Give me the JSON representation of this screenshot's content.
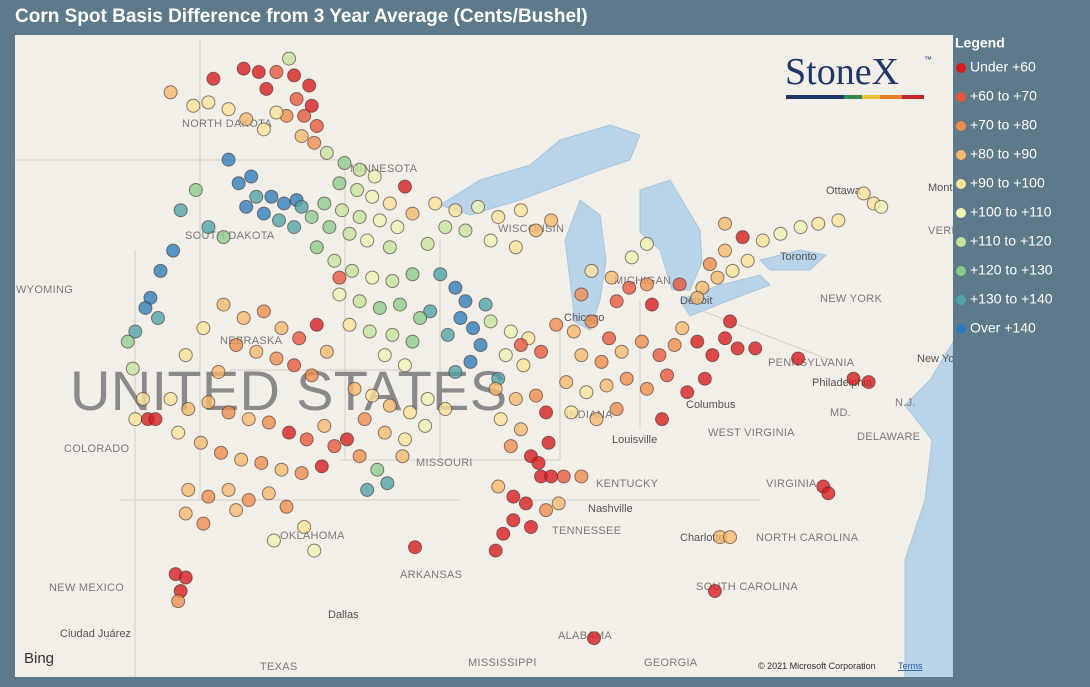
{
  "title": "Corn Spot Basis Difference from 3 Year Average (Cents/Bushel)",
  "legend": {
    "title": "Legend",
    "items": [
      {
        "label": "Under +60",
        "color": "#d7191c"
      },
      {
        "label": "+60 to +70",
        "color": "#e8553a"
      },
      {
        "label": "+70 to +80",
        "color": "#f08c4c"
      },
      {
        "label": "+80 to +90",
        "color": "#f6b96c"
      },
      {
        "label": "+90 to +100",
        "color": "#fbe39a"
      },
      {
        "label": "+100 to +110",
        "color": "#eef4b4"
      },
      {
        "label": "+110 to +120",
        "color": "#c5e39b"
      },
      {
        "label": "+120 to +130",
        "color": "#8bcc8a"
      },
      {
        "label": "+130 to +140",
        "color": "#4ea3a6"
      },
      {
        "label": "Over +140",
        "color": "#2b7bbb"
      }
    ]
  },
  "logo": {
    "name": "StoneX",
    "mark": "™"
  },
  "map": {
    "labels": [
      "NORTH DAKOTA",
      "MINNESOTA",
      "SOUTH DAKOTA",
      "WYOMING",
      "NEBRASKA",
      "UNITED STATES",
      "COLORADO",
      "MISSOURI",
      "OKLAHOMA",
      "ARKANSAS",
      "NEW MEXICO",
      "TEXAS",
      "MISSISSIPPI",
      "ALABAMA",
      "GEORGIA",
      "TENNESSEE",
      "KENTUCKY",
      "WEST VIRGINIA",
      "VIRGINIA",
      "NORTH CAROLINA",
      "SOUTH CAROLINA",
      "PENNSYLVANIA",
      "NEW YORK",
      "DELAWARE",
      "MD.",
      "N.J.",
      "MICHIGAN",
      "WISCONSIN",
      "INDIANA",
      "Ottawa",
      "Toronto",
      "Montréal",
      "Chicago",
      "Detroit",
      "Columbus",
      "Louisville",
      "Nashville",
      "Charlotte",
      "Philadelphia",
      "New York",
      "Dallas",
      "Ciudad Juárez",
      "VERMONT"
    ],
    "points": [
      [
        -99.6,
        49.0,
        0
      ],
      [
        -99.0,
        48.9,
        0
      ],
      [
        -98.3,
        48.9,
        1
      ],
      [
        -97.6,
        48.8,
        0
      ],
      [
        -97.0,
        48.5,
        0
      ],
      [
        -98.7,
        48.4,
        0
      ],
      [
        -97.5,
        48.1,
        1
      ],
      [
        -96.9,
        47.9,
        0
      ],
      [
        -97.9,
        47.6,
        2
      ],
      [
        -96.7,
        47.3,
        1
      ],
      [
        -100.8,
        48.7,
        0
      ],
      [
        -97.2,
        47.6,
        1
      ],
      [
        -101.0,
        48.0,
        4
      ],
      [
        -100.2,
        47.8,
        4
      ],
      [
        -99.5,
        47.5,
        3
      ],
      [
        -98.8,
        47.2,
        4
      ],
      [
        -98.3,
        47.7,
        4
      ],
      [
        -97.3,
        47.0,
        3
      ],
      [
        -96.8,
        46.8,
        2
      ],
      [
        -102.5,
        48.3,
        3
      ],
      [
        -101.6,
        47.9,
        4
      ],
      [
        -97.8,
        49.3,
        6
      ],
      [
        -100.2,
        46.3,
        9
      ],
      [
        -99.8,
        45.6,
        9
      ],
      [
        -99.3,
        45.8,
        9
      ],
      [
        -99.1,
        45.2,
        8
      ],
      [
        -98.5,
        45.2,
        9
      ],
      [
        -98.0,
        45.0,
        9
      ],
      [
        -97.5,
        45.1,
        9
      ],
      [
        -98.8,
        44.7,
        9
      ],
      [
        -98.2,
        44.5,
        8
      ],
      [
        -97.6,
        44.3,
        8
      ],
      [
        -99.5,
        44.9,
        9
      ],
      [
        -101.5,
        45.4,
        7
      ],
      [
        -102.1,
        44.8,
        8
      ],
      [
        -101.0,
        44.3,
        8
      ],
      [
        -100.4,
        44.0,
        7
      ],
      [
        -97.3,
        44.9,
        8
      ],
      [
        -96.9,
        44.6,
        7
      ],
      [
        -102.4,
        43.6,
        9
      ],
      [
        -102.9,
        43.0,
        9
      ],
      [
        -103.3,
        42.2,
        9
      ],
      [
        -103.5,
        41.9,
        9
      ],
      [
        -103.9,
        41.2,
        8
      ],
      [
        -104.2,
        40.9,
        7
      ],
      [
        -104.0,
        40.1,
        6
      ],
      [
        -103.0,
        41.6,
        8
      ],
      [
        -96.3,
        46.5,
        6
      ],
      [
        -95.6,
        46.2,
        7
      ],
      [
        -95.0,
        46.0,
        6
      ],
      [
        -94.4,
        45.8,
        5
      ],
      [
        -95.8,
        45.6,
        7
      ],
      [
        -95.1,
        45.4,
        6
      ],
      [
        -94.5,
        45.2,
        5
      ],
      [
        -93.8,
        45.0,
        4
      ],
      [
        -96.4,
        45.0,
        7
      ],
      [
        -95.7,
        44.8,
        6
      ],
      [
        -95.0,
        44.6,
        6
      ],
      [
        -94.2,
        44.5,
        5
      ],
      [
        -93.5,
        44.3,
        5
      ],
      [
        -96.2,
        44.3,
        7
      ],
      [
        -95.4,
        44.1,
        6
      ],
      [
        -94.7,
        43.9,
        5
      ],
      [
        -93.8,
        43.7,
        6
      ],
      [
        -92.9,
        44.7,
        3
      ],
      [
        -96.7,
        43.7,
        7
      ],
      [
        -93.2,
        45.5,
        0
      ],
      [
        -92.0,
        45.0,
        4
      ],
      [
        -91.2,
        44.8,
        4
      ],
      [
        -90.3,
        44.9,
        5
      ],
      [
        -89.5,
        44.6,
        4
      ],
      [
        -88.6,
        44.8,
        4
      ],
      [
        -88.0,
        44.2,
        3
      ],
      [
        -90.8,
        44.2,
        6
      ],
      [
        -89.8,
        43.9,
        5
      ],
      [
        -88.8,
        43.7,
        4
      ],
      [
        -87.4,
        44.5,
        3
      ],
      [
        -91.6,
        44.3,
        6
      ],
      [
        -92.3,
        43.8,
        6
      ],
      [
        -91.8,
        42.9,
        8
      ],
      [
        -91.2,
        42.5,
        9
      ],
      [
        -90.8,
        42.1,
        9
      ],
      [
        -91.0,
        41.6,
        9
      ],
      [
        -90.5,
        41.3,
        9
      ],
      [
        -90.2,
        40.8,
        9
      ],
      [
        -91.5,
        41.1,
        8
      ],
      [
        -90.6,
        40.3,
        9
      ],
      [
        -91.2,
        40.0,
        8
      ],
      [
        -90.0,
        42.0,
        8
      ],
      [
        -92.2,
        41.8,
        8
      ],
      [
        -89.5,
        39.8,
        8
      ],
      [
        -96.0,
        43.3,
        6
      ],
      [
        -95.3,
        43.0,
        6
      ],
      [
        -94.5,
        42.8,
        5
      ],
      [
        -93.7,
        42.7,
        6
      ],
      [
        -92.9,
        42.9,
        7
      ],
      [
        -95.8,
        42.3,
        5
      ],
      [
        -95.0,
        42.1,
        6
      ],
      [
        -94.2,
        41.9,
        7
      ],
      [
        -93.4,
        42.0,
        7
      ],
      [
        -92.6,
        41.6,
        7
      ],
      [
        -95.4,
        41.4,
        4
      ],
      [
        -94.6,
        41.2,
        6
      ],
      [
        -93.7,
        41.1,
        6
      ],
      [
        -92.9,
        40.9,
        7
      ],
      [
        -94.0,
        40.5,
        5
      ],
      [
        -93.2,
        40.2,
        5
      ],
      [
        -100.4,
        42.0,
        3
      ],
      [
        -99.6,
        41.6,
        3
      ],
      [
        -98.8,
        41.8,
        2
      ],
      [
        -98.1,
        41.3,
        3
      ],
      [
        -97.4,
        41.0,
        1
      ],
      [
        -96.7,
        41.4,
        0
      ],
      [
        -99.9,
        40.8,
        2
      ],
      [
        -99.1,
        40.6,
        3
      ],
      [
        -98.3,
        40.4,
        2
      ],
      [
        -97.6,
        40.2,
        1
      ],
      [
        -96.9,
        39.9,
        2
      ],
      [
        -100.6,
        40.0,
        3
      ],
      [
        -101.2,
        41.3,
        4
      ],
      [
        -101.9,
        40.5,
        4
      ],
      [
        -96.3,
        40.6,
        3
      ],
      [
        -95.8,
        42.8,
        1
      ],
      [
        -102.5,
        39.2,
        4
      ],
      [
        -101.8,
        38.9,
        3
      ],
      [
        -101.0,
        39.1,
        3
      ],
      [
        -100.2,
        38.8,
        2
      ],
      [
        -99.4,
        38.6,
        3
      ],
      [
        -98.6,
        38.5,
        2
      ],
      [
        -97.8,
        38.2,
        0
      ],
      [
        -97.1,
        38.0,
        1
      ],
      [
        -96.4,
        38.4,
        3
      ],
      [
        -102.2,
        38.2,
        4
      ],
      [
        -101.3,
        37.9,
        3
      ],
      [
        -100.5,
        37.6,
        2
      ],
      [
        -99.7,
        37.4,
        3
      ],
      [
        -98.9,
        37.3,
        2
      ],
      [
        -98.1,
        37.1,
        3
      ],
      [
        -97.3,
        37.0,
        2
      ],
      [
        -96.5,
        37.2,
        0
      ],
      [
        -96.0,
        37.8,
        1
      ],
      [
        -103.9,
        38.6,
        4
      ],
      [
        -103.6,
        39.2,
        4
      ],
      [
        -103.4,
        38.6,
        0
      ],
      [
        -103.1,
        38.6,
        0
      ],
      [
        -101.8,
        36.5,
        3
      ],
      [
        -101.0,
        36.3,
        2
      ],
      [
        -100.2,
        36.5,
        3
      ],
      [
        -99.4,
        36.2,
        2
      ],
      [
        -98.6,
        36.4,
        3
      ],
      [
        -97.9,
        36.0,
        2
      ],
      [
        -101.9,
        35.8,
        3
      ],
      [
        -101.2,
        35.5,
        2
      ],
      [
        -99.9,
        35.9,
        3
      ],
      [
        -97.2,
        35.4,
        4
      ],
      [
        -96.8,
        34.7,
        5
      ],
      [
        -95.2,
        39.5,
        3
      ],
      [
        -94.5,
        39.3,
        4
      ],
      [
        -93.8,
        39.0,
        3
      ],
      [
        -93.0,
        38.8,
        4
      ],
      [
        -92.3,
        39.2,
        5
      ],
      [
        -91.6,
        38.9,
        4
      ],
      [
        -94.8,
        38.6,
        2
      ],
      [
        -94.0,
        38.2,
        3
      ],
      [
        -93.2,
        38.0,
        4
      ],
      [
        -92.4,
        38.4,
        5
      ],
      [
        -95.5,
        38.0,
        0
      ],
      [
        -95.0,
        37.5,
        2
      ],
      [
        -94.3,
        37.1,
        7
      ],
      [
        -94.7,
        36.5,
        8
      ],
      [
        -93.3,
        37.5,
        3
      ],
      [
        -89.8,
        41.5,
        6
      ],
      [
        -89.0,
        41.2,
        5
      ],
      [
        -88.3,
        41.0,
        4
      ],
      [
        -89.2,
        40.5,
        5
      ],
      [
        -88.5,
        40.2,
        4
      ],
      [
        -87.8,
        40.6,
        1
      ],
      [
        -89.6,
        39.5,
        3
      ],
      [
        -88.8,
        39.2,
        3
      ],
      [
        -88.0,
        39.3,
        2
      ],
      [
        -87.6,
        38.8,
        0
      ],
      [
        -89.4,
        38.6,
        4
      ],
      [
        -88.6,
        38.3,
        3
      ],
      [
        -89.0,
        37.8,
        2
      ],
      [
        -88.2,
        37.5,
        0
      ],
      [
        -87.5,
        37.9,
        0
      ],
      [
        -88.6,
        40.8,
        1
      ],
      [
        -87.2,
        41.4,
        2
      ],
      [
        -86.5,
        41.2,
        3
      ],
      [
        -85.8,
        41.5,
        2
      ],
      [
        -85.1,
        41.0,
        1
      ],
      [
        -86.2,
        40.5,
        3
      ],
      [
        -85.4,
        40.3,
        2
      ],
      [
        -84.6,
        40.6,
        3
      ],
      [
        -83.8,
        40.9,
        2
      ],
      [
        -83.1,
        40.5,
        1
      ],
      [
        -82.5,
        40.8,
        2
      ],
      [
        -86.8,
        39.7,
        3
      ],
      [
        -86.0,
        39.4,
        4
      ],
      [
        -85.2,
        39.6,
        3
      ],
      [
        -84.4,
        39.8,
        2
      ],
      [
        -83.6,
        39.5,
        2
      ],
      [
        -82.8,
        39.9,
        1
      ],
      [
        -86.6,
        38.8,
        4
      ],
      [
        -85.6,
        38.6,
        3
      ],
      [
        -84.8,
        38.9,
        2
      ],
      [
        -82.2,
        41.3,
        3
      ],
      [
        -81.6,
        40.9,
        0
      ],
      [
        -81.0,
        40.5,
        0
      ],
      [
        -80.5,
        41.0,
        0
      ],
      [
        -80.0,
        40.7,
        0
      ],
      [
        -81.3,
        39.8,
        0
      ],
      [
        -82.0,
        39.4,
        0
      ],
      [
        -80.3,
        41.5,
        0
      ],
      [
        -79.3,
        40.7,
        0
      ],
      [
        -83.0,
        38.6,
        0
      ],
      [
        -85.8,
        43.0,
        4
      ],
      [
        -85.0,
        42.8,
        3
      ],
      [
        -84.3,
        42.5,
        1
      ],
      [
        -83.6,
        42.6,
        2
      ],
      [
        -86.2,
        42.3,
        2
      ],
      [
        -84.8,
        42.1,
        1
      ],
      [
        -83.4,
        42.0,
        0
      ],
      [
        -84.2,
        43.4,
        5
      ],
      [
        -83.6,
        43.8,
        5
      ],
      [
        -81.4,
        42.5,
        3
      ],
      [
        -80.8,
        42.8,
        3
      ],
      [
        -80.2,
        43.0,
        4
      ],
      [
        -79.6,
        43.3,
        4
      ],
      [
        -80.5,
        43.6,
        3
      ],
      [
        -81.1,
        43.2,
        2
      ],
      [
        -79.0,
        43.9,
        4
      ],
      [
        -78.3,
        44.1,
        5
      ],
      [
        -77.5,
        44.3,
        5
      ],
      [
        -76.8,
        44.4,
        4
      ],
      [
        -81.6,
        42.2,
        3
      ],
      [
        -82.3,
        42.6,
        1
      ],
      [
        -79.8,
        44.0,
        0
      ],
      [
        -80.5,
        44.4,
        3
      ],
      [
        -75.0,
        45.3,
        4
      ],
      [
        -74.6,
        45.0,
        4
      ],
      [
        -74.3,
        44.9,
        5
      ],
      [
        -76.0,
        44.5,
        4
      ],
      [
        -89.5,
        36.6,
        3
      ],
      [
        -88.9,
        36.3,
        0
      ],
      [
        -88.4,
        36.1,
        0
      ],
      [
        -88.9,
        35.6,
        0
      ],
      [
        -88.2,
        35.4,
        0
      ],
      [
        -87.6,
        35.9,
        2
      ],
      [
        -87.1,
        36.1,
        3
      ],
      [
        -89.3,
        35.2,
        0
      ],
      [
        -86.9,
        36.9,
        1
      ],
      [
        -86.2,
        36.9,
        2
      ],
      [
        -87.8,
        36.9,
        0
      ],
      [
        -87.9,
        37.3,
        0
      ],
      [
        -87.4,
        36.9,
        0
      ],
      [
        -77.6,
        40.4,
        0
      ],
      [
        -75.4,
        39.8,
        0
      ],
      [
        -74.8,
        39.7,
        0
      ],
      [
        -76.6,
        36.6,
        0
      ],
      [
        -76.4,
        36.4,
        0
      ],
      [
        -80.9,
        33.5,
        0
      ],
      [
        -80.7,
        35.1,
        3
      ],
      [
        -80.3,
        35.1,
        3
      ],
      [
        -85.7,
        32.1,
        0
      ],
      [
        -89.6,
        34.7,
        0
      ],
      [
        -92.8,
        34.8,
        0
      ],
      [
        -102.3,
        34.0,
        0
      ],
      [
        -101.9,
        33.9,
        0
      ],
      [
        -102.1,
        33.5,
        0
      ],
      [
        -102.2,
        33.2,
        2
      ],
      [
        -98.4,
        35.0,
        5
      ],
      [
        -93.9,
        36.7,
        8
      ]
    ],
    "attribution": {
      "provider": "Bing",
      "copyright": "© 2021 Microsoft Corporation",
      "terms": "Terms"
    }
  }
}
